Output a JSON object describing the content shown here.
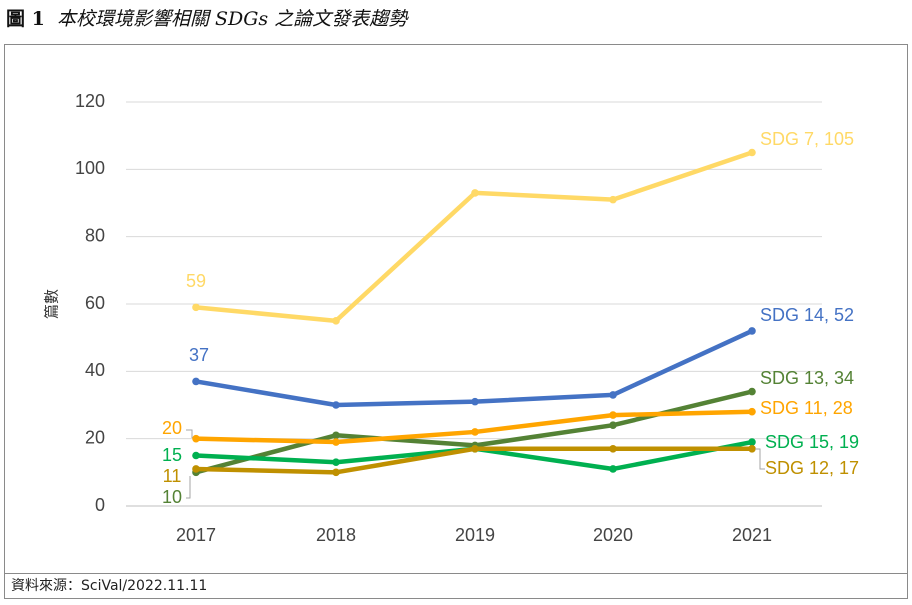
{
  "caption": {
    "prefix": "圖 1",
    "title": "本校環境影響相關 SDGs 之論文發表趨勢"
  },
  "source": "資料來源：SciVal/2022.11.11",
  "chart_data": {
    "type": "line",
    "x": [
      2017,
      2018,
      2019,
      2020,
      2021
    ],
    "ylabel": "篇數",
    "ylim": [
      0,
      120
    ],
    "yticks": [
      0,
      20,
      40,
      60,
      80,
      100,
      120
    ],
    "grid": true,
    "series": [
      {
        "name": "SDG 7",
        "values": [
          59,
          55,
          93,
          91,
          105
        ],
        "color": "#FFD966",
        "start_label": "59",
        "end_label": "SDG 7, 105"
      },
      {
        "name": "SDG 14",
        "values": [
          37,
          30,
          31,
          33,
          52
        ],
        "color": "#4472C4",
        "start_label": "37",
        "end_label": "SDG 14, 52"
      },
      {
        "name": "SDG 13",
        "values": [
          10,
          21,
          18,
          24,
          34
        ],
        "color": "#548235",
        "start_label": "10",
        "end_label": "SDG 13, 34"
      },
      {
        "name": "SDG 11",
        "values": [
          20,
          19,
          22,
          27,
          28
        ],
        "color": "#FFA500",
        "start_label": "20",
        "end_label": "SDG 11, 28"
      },
      {
        "name": "SDG 15",
        "values": [
          15,
          13,
          17,
          11,
          19
        ],
        "color": "#00B050",
        "start_label": "15",
        "end_label": "SDG 15, 19"
      },
      {
        "name": "SDG 12",
        "values": [
          11,
          10,
          17,
          17,
          17
        ],
        "color": "#BF9000",
        "start_label": "11",
        "end_label": "SDG 12, 17"
      }
    ]
  }
}
